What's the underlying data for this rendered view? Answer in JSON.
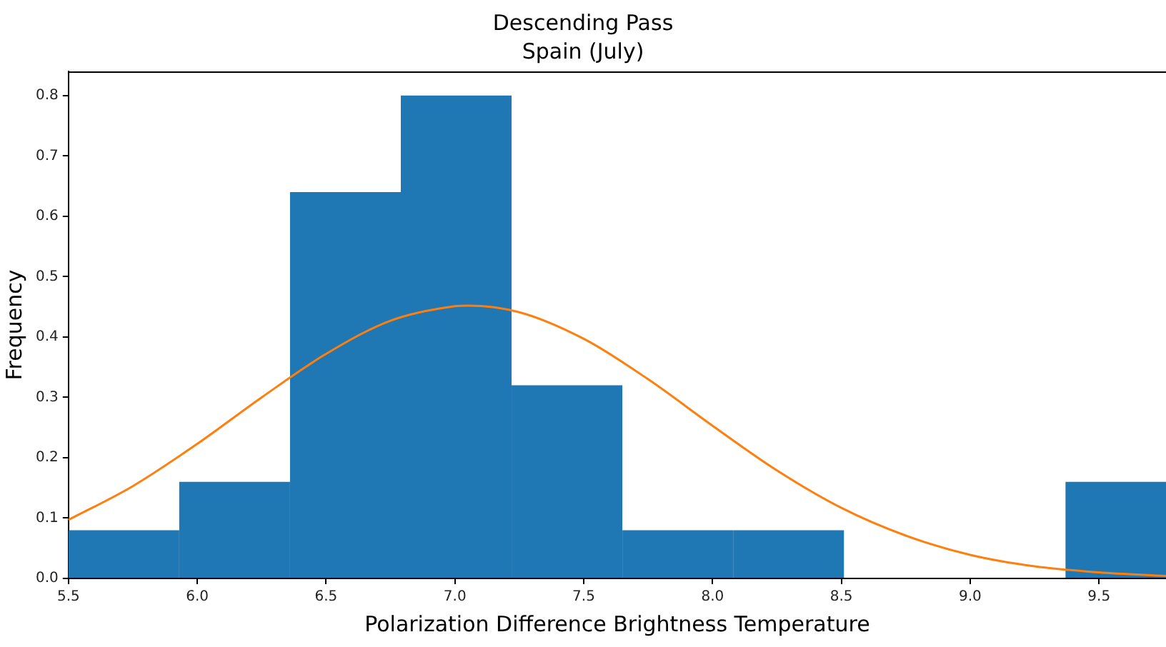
{
  "chart_data": {
    "type": "histogram",
    "title": "Descending Pass",
    "subtitle": "Spain (July)",
    "xlabel": "Polarization Difference Brightness Temperature",
    "ylabel": "Frequency",
    "bins": [
      5.5,
      5.93,
      6.36,
      6.79,
      7.22,
      7.65,
      8.08,
      8.51,
      9.37,
      9.76
    ],
    "values": [
      0.08,
      0.16,
      0.64,
      0.8,
      0.32,
      0.08,
      0.08,
      0,
      0.16
    ],
    "color": "#1f77b4",
    "xlim": [
      5.5,
      9.76
    ],
    "ylim": [
      0,
      0.84
    ],
    "xticks": [
      5.5,
      {
        "value": 6,
        "label": "6.0"
      },
      6.5,
      {
        "value": 7,
        "label": "7.0"
      },
      7.5,
      {
        "value": 8,
        "label": "8.0"
      },
      8.5,
      {
        "value": 9,
        "label": "9.0"
      },
      9.5
    ],
    "yticks": [
      {
        "value": 0,
        "label": "0.0"
      },
      0.1,
      0.2,
      0.3,
      0.4,
      0.5,
      0.6,
      0.7,
      0.8
    ],
    "grid": false,
    "series": [
      {
        "type": "line",
        "color": "#ff7f0e",
        "x": [
          5.5,
          5.75,
          6,
          6.25,
          6.5,
          6.75,
          7,
          7.05,
          7.25,
          7.5,
          7.75,
          8,
          8.25,
          8.5,
          8.75,
          9,
          9.25,
          9.5,
          9.76
        ],
        "values": [
          0.097,
          0.153,
          0.223,
          0.3,
          0.372,
          0.427,
          0.451,
          0.452,
          0.441,
          0.397,
          0.33,
          0.253,
          0.179,
          0.117,
          0.071,
          0.039,
          0.02,
          0.01,
          0.004
        ]
      }
    ]
  }
}
